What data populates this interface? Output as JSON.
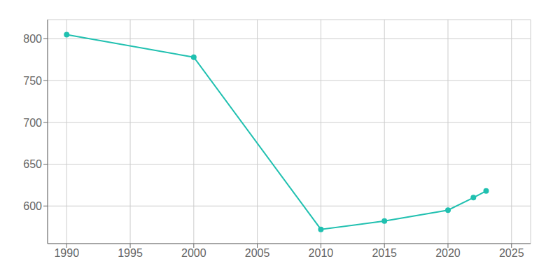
{
  "chart_data": {
    "type": "line",
    "x": [
      1990,
      2000,
      2010,
      2015,
      2020,
      2022,
      2023
    ],
    "values": [
      805,
      778,
      572,
      582,
      595,
      610,
      618
    ],
    "color": "#20c0b0",
    "marker": "circle",
    "xlim": [
      1988.5,
      2026.5
    ],
    "ylim": [
      555,
      823
    ],
    "xticks": [
      1990,
      1995,
      2000,
      2005,
      2010,
      2015,
      2020,
      2025
    ],
    "yticks": [
      600,
      650,
      700,
      750,
      800
    ],
    "grid": true
  }
}
